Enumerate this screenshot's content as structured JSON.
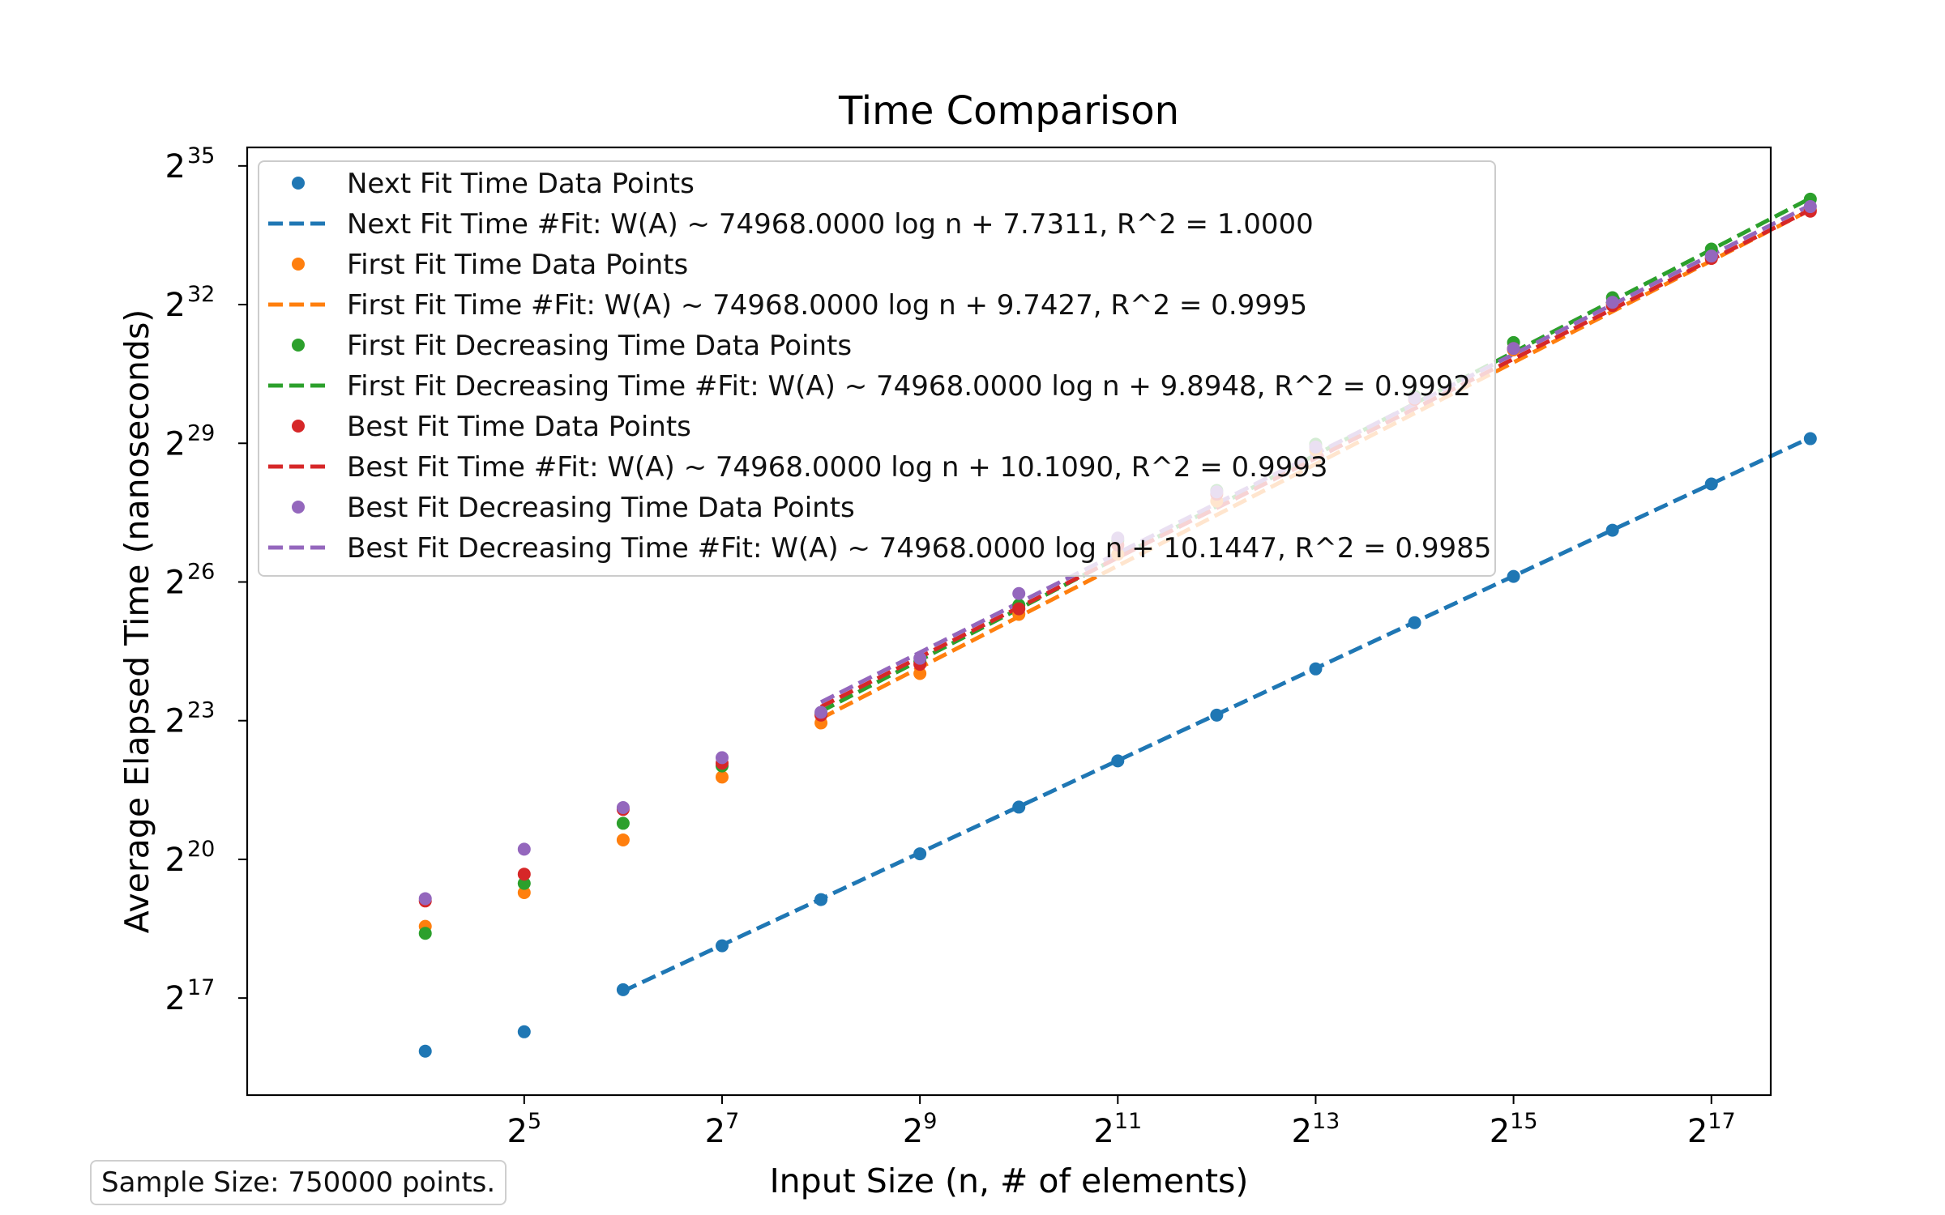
{
  "chart_data": {
    "type": "scatter",
    "title": "Time Comparison",
    "xlabel": "Input Size (n, # of elements)",
    "ylabel": "Average Elapsed Time (nanoseconds)",
    "x_scale": "log2",
    "y_scale": "log2",
    "x_tick_exponents": [
      5,
      7,
      9,
      11,
      13,
      15,
      17
    ],
    "y_tick_exponents": [
      17,
      20,
      23,
      26,
      29,
      32,
      35
    ],
    "x_tick_base": "2",
    "y_tick_base": "2",
    "xlim_log2": [
      2.2,
      17.6
    ],
    "ylim_log2": [
      14.9,
      35.4
    ],
    "x_log2": [
      4,
      5,
      6,
      7,
      8,
      9,
      10,
      11,
      12,
      13,
      14,
      15,
      16,
      17,
      18
    ],
    "legend_position": "upper-left",
    "grid": false,
    "series": [
      {
        "name": "Next Fit Time",
        "points_label": "Next Fit Time Data Points",
        "fit_label": "Next Fit Time #Fit: W(A) ~ 74968.0000 log n + 7.7311, R^2 = 1.0000",
        "color": "#1f77b4",
        "y_log2": [
          15.85,
          16.27,
          17.18,
          18.13,
          19.13,
          20.12,
          21.13,
          22.13,
          23.12,
          24.12,
          25.12,
          26.12,
          27.12,
          28.12,
          29.1
        ],
        "fit_x_log2": [
          6,
          18
        ],
        "fit_y_log2": [
          17.15,
          29.12
        ]
      },
      {
        "name": "First Fit Time",
        "points_label": "First Fit Time Data Points",
        "fit_label": "First Fit Time #Fit: W(A) ~ 74968.0000 log n + 9.7427, R^2 = 0.9995",
        "color": "#ff7f0e",
        "y_log2": [
          18.55,
          19.28,
          20.42,
          21.78,
          22.95,
          24.02,
          25.3,
          26.6,
          27.75,
          28.85,
          29.95,
          31.02,
          32.02,
          33.0,
          34.05
        ],
        "fit_x_log2": [
          8,
          18
        ],
        "fit_y_log2": [
          23.05,
          34.05
        ]
      },
      {
        "name": "First Fit Decreasing Time",
        "points_label": "First Fit Decreasing Time Data Points",
        "fit_label": "First Fit Decreasing Time #Fit: W(A) ~ 74968.0000 log n + 9.8948, R^2 = 0.9992",
        "color": "#2ca02c",
        "y_log2": [
          18.4,
          19.48,
          20.78,
          22.02,
          23.15,
          24.28,
          25.5,
          26.9,
          27.98,
          28.98,
          30.02,
          31.18,
          32.15,
          33.2,
          34.28
        ],
        "fit_x_log2": [
          8,
          18
        ],
        "fit_y_log2": [
          23.2,
          34.3
        ]
      },
      {
        "name": "Best Fit Time",
        "points_label": "Best Fit Time Data Points",
        "fit_label": "Best Fit Time #Fit: W(A) ~ 74968.0000 log n + 10.1090, R^2 = 0.9993",
        "color": "#d62728",
        "y_log2": [
          19.1,
          19.68,
          21.08,
          22.08,
          23.12,
          24.22,
          25.42,
          26.8,
          27.9,
          28.92,
          29.95,
          31.05,
          31.98,
          33.0,
          34.02
        ],
        "fit_x_log2": [
          8,
          18
        ],
        "fit_y_log2": [
          23.3,
          34.05
        ]
      },
      {
        "name": "Best Fit Decreasing Time",
        "points_label": "Best Fit Decreasing Time Data Points",
        "fit_label": "Best Fit Decreasing Time #Fit: W(A) ~ 74968.0000 log n + 10.1447, R^2 = 0.9985",
        "color": "#9467bd",
        "y_log2": [
          19.15,
          20.22,
          21.12,
          22.2,
          23.18,
          24.35,
          25.75,
          26.95,
          27.95,
          28.92,
          29.98,
          31.05,
          32.05,
          33.05,
          34.12
        ],
        "fit_x_log2": [
          8,
          18
        ],
        "fit_y_log2": [
          23.4,
          34.15
        ]
      }
    ]
  },
  "note": "Sample Size: 750000 points."
}
